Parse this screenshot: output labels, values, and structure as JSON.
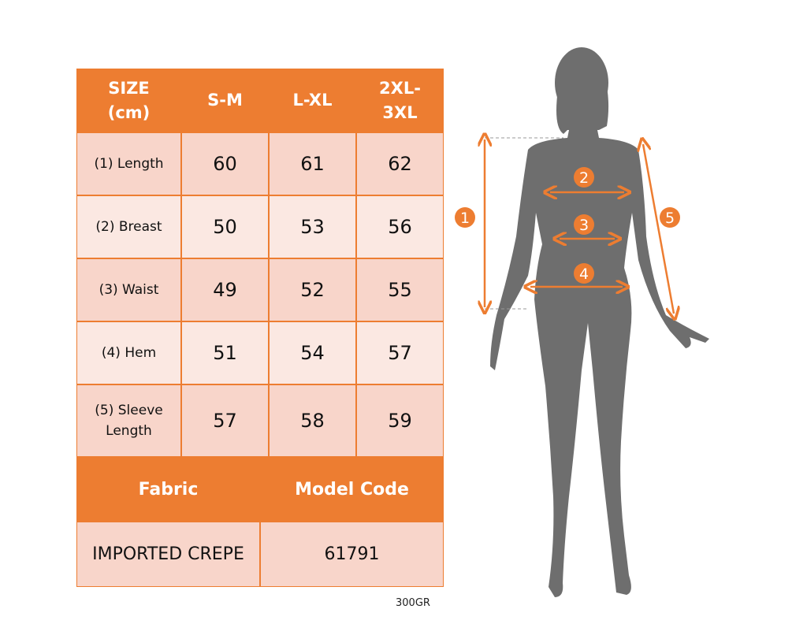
{
  "table": {
    "headers": [
      "SIZE\n(cm)",
      "S-M",
      "L-XL",
      "2XL-\n3XL"
    ],
    "rows": [
      {
        "label": "(1) Length",
        "values": [
          "60",
          "61",
          "62"
        ]
      },
      {
        "label": "(2) Breast",
        "values": [
          "50",
          "53",
          "56"
        ]
      },
      {
        "label": "(3) Waist",
        "values": [
          "49",
          "52",
          "55"
        ]
      },
      {
        "label": "(4) Hem",
        "values": [
          "51",
          "54",
          "57"
        ]
      },
      {
        "label": "(5) Sleeve Length",
        "values": [
          "57",
          "58",
          "59"
        ]
      }
    ],
    "footer_headers": [
      "Fabric",
      "Model Code"
    ],
    "footer_values": [
      "IMPORTED CREPE",
      "61791"
    ]
  },
  "note": "300GR",
  "figure": {
    "markers": [
      "1",
      "2",
      "3",
      "4",
      "5"
    ]
  },
  "colors": {
    "accent": "#ED7D31",
    "row_dark": "#F8D5CA",
    "row_light": "#FBE8E2",
    "silhouette": "#6E6E6E"
  }
}
